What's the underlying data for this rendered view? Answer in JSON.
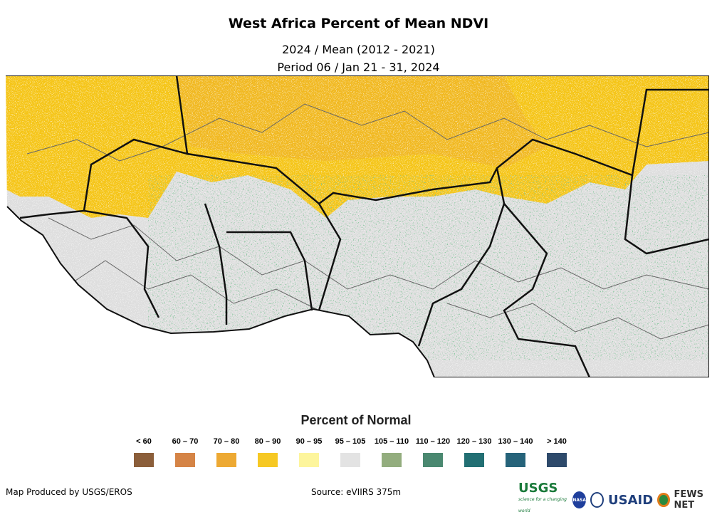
{
  "title": "West Africa Percent of Mean NDVI",
  "subtitle1": "2024 / Mean (2012 - 2021)",
  "subtitle2": "Period 06 / Jan 21 - 31, 2024",
  "legend": {
    "title": "Percent of Normal",
    "items": [
      {
        "label": "< 60",
        "color": "#8b5e3a"
      },
      {
        "label": "60 – 70",
        "color": "#d58446"
      },
      {
        "label": "70 – 80",
        "color": "#eda933"
      },
      {
        "label": "80 – 90",
        "color": "#f6c823"
      },
      {
        "label": "90 – 95",
        "color": "#fdf59c"
      },
      {
        "label": "95 – 105",
        "color": "#e3e3e3"
      },
      {
        "label": "105 – 110",
        "color": "#93ad7e"
      },
      {
        "label": "110 – 120",
        "color": "#4a8870"
      },
      {
        "label": "120 – 130",
        "color": "#226f73"
      },
      {
        "label": "130 – 140",
        "color": "#26637a"
      },
      {
        "label": "> 140",
        "color": "#2e4a6b"
      }
    ]
  },
  "footer": {
    "left": "Map Produced by USGS/EROS",
    "center": "Source: eVIIRS 375m"
  },
  "logos": {
    "usgs": "USGS",
    "usgs_tagline": "science for a changing world",
    "nasa": "NASA",
    "usaid": "USAID",
    "fews": "FEWS NET"
  }
}
